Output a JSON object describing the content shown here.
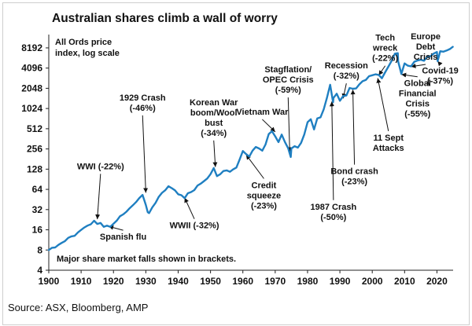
{
  "chart_data": {
    "type": "line",
    "title": "Australian shares climb a wall of worry",
    "subtitle_lines": [
      "All Ords price",
      "index, log scale"
    ],
    "footnote": "Major share market falls shown in brackets.",
    "source": "Source: ASX, Bloomberg, AMP",
    "xlabel": "",
    "ylabel": "",
    "xlim": [
      1900,
      2025
    ],
    "ylim": [
      4,
      11000
    ],
    "yscale": "log2",
    "grid": false,
    "line_color": "#1f7fc1",
    "x_ticks": [
      1900,
      1910,
      1920,
      1930,
      1940,
      1950,
      1960,
      1970,
      1980,
      1990,
      2000,
      2010,
      2020
    ],
    "y_ticks": [
      4,
      8,
      16,
      32,
      64,
      128,
      256,
      512,
      1024,
      2048,
      4096,
      8192
    ],
    "series": [
      {
        "name": "All Ords price index",
        "points": [
          [
            1900,
            8.0
          ],
          [
            1901,
            8.6
          ],
          [
            1902,
            8.8
          ],
          [
            1903,
            9.4
          ],
          [
            1904,
            10.2
          ],
          [
            1905,
            11.0
          ],
          [
            1906,
            12.0
          ],
          [
            1907,
            12.8
          ],
          [
            1908,
            13.2
          ],
          [
            1909,
            14.5
          ],
          [
            1910,
            16.0
          ],
          [
            1911,
            17.0
          ],
          [
            1912,
            18.4
          ],
          [
            1913,
            19.5
          ],
          [
            1914,
            21.5
          ],
          [
            1915,
            19.5
          ],
          [
            1916,
            20.5
          ],
          [
            1917,
            17.5
          ],
          [
            1918,
            18.5
          ],
          [
            1919,
            18.0
          ],
          [
            1920,
            19.5
          ],
          [
            1921,
            22.0
          ],
          [
            1922,
            25.0
          ],
          [
            1923,
            27.0
          ],
          [
            1924,
            30.0
          ],
          [
            1925,
            33.0
          ],
          [
            1926,
            37.0
          ],
          [
            1927,
            42.0
          ],
          [
            1928,
            47.0
          ],
          [
            1929,
            53.0
          ],
          [
            1930,
            38.0
          ],
          [
            1930.6,
            29.0
          ],
          [
            1931,
            28.5
          ],
          [
            1932,
            34.0
          ],
          [
            1933,
            40.0
          ],
          [
            1934,
            50.0
          ],
          [
            1935,
            56.0
          ],
          [
            1936,
            62.0
          ],
          [
            1937,
            72.0
          ],
          [
            1938,
            66.0
          ],
          [
            1939,
            62.0
          ],
          [
            1940,
            55.0
          ],
          [
            1941,
            52.0
          ],
          [
            1942,
            47.5
          ],
          [
            1943,
            55.0
          ],
          [
            1944,
            58.0
          ],
          [
            1945,
            63.0
          ],
          [
            1946,
            72.0
          ],
          [
            1947,
            78.0
          ],
          [
            1948,
            86.0
          ],
          [
            1949,
            92.0
          ],
          [
            1950,
            108.0
          ],
          [
            1951,
            135.0
          ],
          [
            1952,
            100.0
          ],
          [
            1953,
            108.0
          ],
          [
            1954,
            118.0
          ],
          [
            1955,
            122.0
          ],
          [
            1956,
            118.0
          ],
          [
            1957,
            125.0
          ],
          [
            1958,
            135.0
          ],
          [
            1959,
            180.0
          ],
          [
            1960,
            235.0
          ],
          [
            1961,
            215.0
          ],
          [
            1962,
            200.0
          ],
          [
            1963,
            240.0
          ],
          [
            1964,
            275.0
          ],
          [
            1965,
            255.0
          ],
          [
            1966,
            240.0
          ],
          [
            1967,
            300.0
          ],
          [
            1968,
            420.0
          ],
          [
            1969,
            470.0
          ],
          [
            1970,
            400.0
          ],
          [
            1971,
            320.0
          ],
          [
            1972,
            420.0
          ],
          [
            1973,
            330.0
          ],
          [
            1974,
            260.0
          ],
          [
            1974.8,
            195.0
          ],
          [
            1975,
            255.0
          ],
          [
            1976,
            280.0
          ],
          [
            1977,
            270.0
          ],
          [
            1978,
            310.0
          ],
          [
            1979,
            420.0
          ],
          [
            1980,
            650.0
          ],
          [
            1981,
            700.0
          ],
          [
            1982,
            500.0
          ],
          [
            1983,
            740.0
          ],
          [
            1984,
            750.0
          ],
          [
            1985,
            1000.0
          ],
          [
            1986,
            1450.0
          ],
          [
            1987,
            2300.0
          ],
          [
            1987.9,
            1280.0
          ],
          [
            1988,
            1450.0
          ],
          [
            1989,
            1700.0
          ],
          [
            1990,
            1350.0
          ],
          [
            1991,
            1550.0
          ],
          [
            1992,
            1600.0
          ],
          [
            1993,
            2100.0
          ],
          [
            1994,
            2000.0
          ],
          [
            1995,
            2050.0
          ],
          [
            1996,
            2300.0
          ],
          [
            1997,
            2600.0
          ],
          [
            1998,
            2750.0
          ],
          [
            1999,
            3050.0
          ],
          [
            2000,
            3200.0
          ],
          [
            2001,
            3350.0
          ],
          [
            2002,
            3200.0
          ],
          [
            2003,
            2900.0
          ],
          [
            2004,
            3600.0
          ],
          [
            2005,
            4300.0
          ],
          [
            2006,
            5300.0
          ],
          [
            2007,
            6600.0
          ],
          [
            2007.9,
            6800.0
          ],
          [
            2008,
            5200.0
          ],
          [
            2009,
            3300.0
          ],
          [
            2010,
            4800.0
          ],
          [
            2011,
            4500.0
          ],
          [
            2012,
            4300.0
          ],
          [
            2013,
            5100.0
          ],
          [
            2014,
            5400.0
          ],
          [
            2015,
            5400.0
          ],
          [
            2016,
            5300.0
          ],
          [
            2017,
            5900.0
          ],
          [
            2018,
            6100.0
          ],
          [
            2019,
            6800.0
          ],
          [
            2020,
            7000.0
          ],
          [
            2020.2,
            5200.0
          ],
          [
            2021,
            7400.0
          ],
          [
            2022,
            7100.0
          ],
          [
            2023,
            7500.0
          ],
          [
            2024,
            8000.0
          ],
          [
            2024.9,
            8500.0
          ]
        ]
      }
    ],
    "annotations": [
      {
        "lines": [
          "WWI (-22%)"
        ],
        "pos": [
          1916,
          128
        ],
        "anchor": "middle",
        "target": [
          1915,
          23
        ]
      },
      {
        "lines": [
          "Spanish flu"
        ],
        "pos": [
          1923,
          11.4
        ],
        "anchor": "middle",
        "target": [
          1918.5,
          18
        ]
      },
      {
        "lines": [
          "1929 Crash",
          "(-46%)"
        ],
        "pos": [
          1929,
          1350
        ],
        "anchor": "middle",
        "target": [
          1930,
          57
        ]
      },
      {
        "lines": [
          "Korean War",
          "boom/Wool",
          "bust",
          "(-34%)"
        ],
        "pos": [
          1951,
          1150
        ],
        "anchor": "middle",
        "target": [
          1951.5,
          138
        ]
      },
      {
        "lines": [
          "Vietnam War"
        ],
        "pos": [
          1966,
          830
        ],
        "anchor": "middle",
        "target": [
          1970,
          460
        ]
      },
      {
        "lines": [
          "Stagflation/",
          "OPEC Crisis",
          "(-59%)"
        ],
        "pos": [
          1974,
          3550
        ],
        "anchor": "middle",
        "target": [
          1974.5,
          230
        ]
      },
      {
        "lines": [
          "Credit",
          "squeeze",
          "(-23%)"
        ],
        "pos": [
          1966.5,
          67
        ],
        "anchor": "middle",
        "target": [
          1961,
          210
        ]
      },
      {
        "lines": [
          "WWII (-32%)"
        ],
        "pos": [
          1945,
          16.8
        ],
        "anchor": "middle",
        "target": [
          1942,
          48
        ]
      },
      {
        "lines": [
          "Recession",
          "(-32%)"
        ],
        "pos": [
          1992,
          4050
        ],
        "anchor": "middle",
        "target": [
          1991,
          1450
        ]
      },
      {
        "lines": [
          "1987 Crash",
          "(-50%)"
        ],
        "pos": [
          1988,
          32
        ],
        "anchor": "middle",
        "target": [
          1987.5,
          1300
        ]
      },
      {
        "lines": [
          "Bond crash",
          "(-23%)"
        ],
        "pos": [
          1994.5,
          108
        ],
        "anchor": "middle",
        "target": [
          1994,
          1950
        ]
      },
      {
        "lines": [
          "Tech",
          "wreck",
          "(-22%)"
        ],
        "pos": [
          2004,
          10500
        ],
        "anchor": "middle",
        "target": [
          2002,
          3200
        ]
      },
      {
        "lines": [
          "11 Sept",
          "Attacks"
        ],
        "pos": [
          2005,
          342
        ],
        "anchor": "middle",
        "target": [
          2001.7,
          2900
        ]
      },
      {
        "lines": [
          "Global",
          "Financial",
          "Crisis",
          "(-55%)"
        ],
        "pos": [
          2014,
          2200
        ],
        "anchor": "middle",
        "target": [
          2009,
          3300
        ]
      },
      {
        "lines": [
          "Europe",
          "Debt",
          "Crisis"
        ],
        "pos": [
          2016.5,
          11000
        ],
        "anchor": "middle",
        "target": [
          2012,
          4300
        ]
      },
      {
        "lines": [
          "Covid-19",
          "(-37%)"
        ],
        "pos": [
          2021,
          3400
        ],
        "anchor": "middle",
        "target": [
          2020.2,
          5200
        ]
      }
    ]
  }
}
